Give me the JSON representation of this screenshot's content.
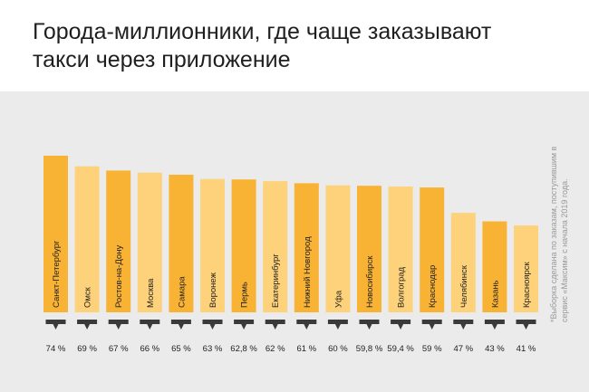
{
  "title_line1": "Города-миллионники, где чаще заказывают",
  "title_line2": "такси через приложение",
  "footnote": "*Выборка сделана по заказам, поступившим в сервис «Максим» с начала 2019 года.",
  "colors": {
    "bar_dark": "#f8b334",
    "bar_light": "#fdd27a",
    "panel_bg": "#ebebeb",
    "marker": "#3a3a3a",
    "text": "#1f1f1f"
  },
  "chart_data": {
    "type": "bar",
    "title": "Города-миллионники, где чаще заказывают такси через приложение",
    "categories": [
      "Санкт-Петербург",
      "Омск",
      "Ростов-на-Дону",
      "Москва",
      "Самара",
      "Воронеж",
      "Пермь",
      "Екатеринбург",
      "Нижний Новгород",
      "Уфа",
      "Новосибирск",
      "Волгоград",
      "Краснодар",
      "Челябинск",
      "Казань",
      "Красноярск"
    ],
    "values": [
      74,
      69,
      67,
      66,
      65,
      63,
      62.8,
      62,
      61,
      60,
      59.8,
      59.4,
      59,
      47,
      43,
      41
    ],
    "value_labels": [
      "74 %",
      "69 %",
      "67 %",
      "66 %",
      "65 %",
      "63 %",
      "62,8 %",
      "62 %",
      "61 %",
      "60 %",
      "59,8 %",
      "59,4 %",
      "59 %",
      "47 %",
      "43 %",
      "41 %"
    ],
    "ylim": [
      0,
      74
    ],
    "grid": false,
    "legend": "none"
  }
}
